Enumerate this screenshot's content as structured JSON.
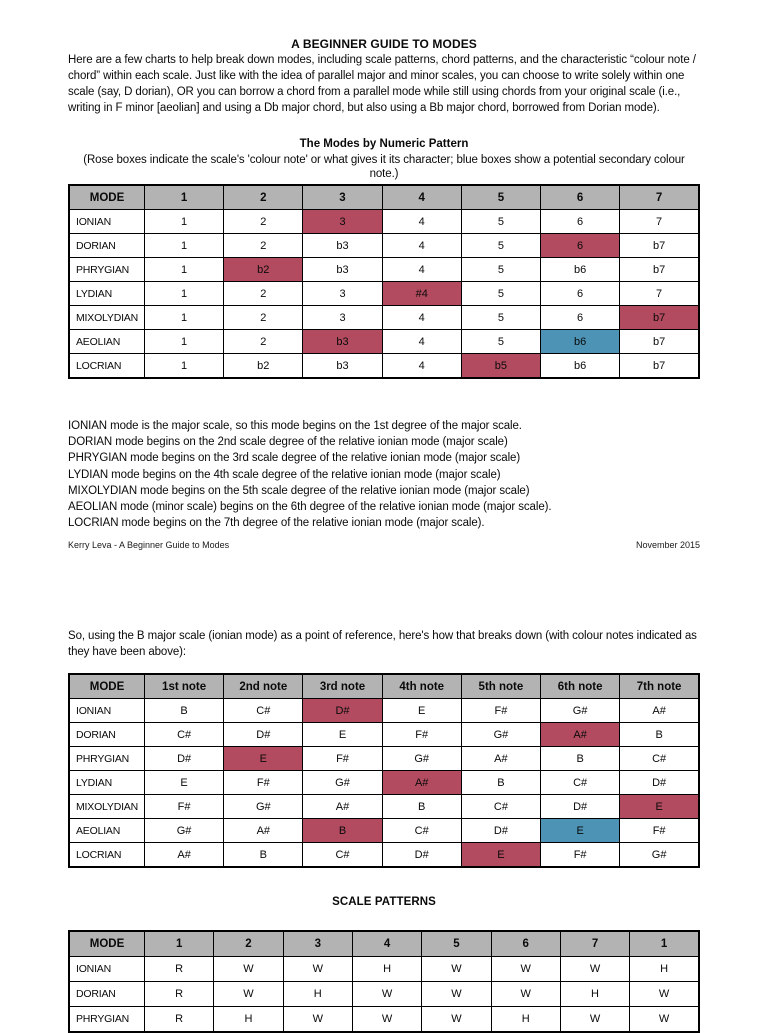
{
  "colors": {
    "rose": "#b34b60",
    "blue": "#4d93b5",
    "header_gray": "#b3b3b3"
  },
  "page1": {
    "title": "A BEGINNER GUIDE TO MODES",
    "intro": "Here are a few charts to help break down modes, including scale patterns, chord patterns, and the characteristic “colour note / chord” within each scale. Just like with the idea of parallel major and minor scales, you can choose to write solely within one scale (say, D dorian), OR you can borrow a chord from a parallel mode while still using chords from your original scale (i.e., writing in F minor [aeolian] and using a Db major chord, but also using a Bb major chord, borrowed from Dorian mode).",
    "section": {
      "title": "The Modes by Numeric Pattern",
      "subtitle": "(Rose boxes indicate the scale's 'colour note' or what gives it its character; blue boxes show a potential secondary colour note.)"
    },
    "table1": {
      "headers": [
        "MODE",
        "1",
        "2",
        "3",
        "4",
        "5",
        "6",
        "7"
      ],
      "rows": [
        {
          "mode": "IONIAN",
          "cells": [
            "1",
            "2",
            "3",
            "4",
            "5",
            "6",
            "7"
          ],
          "hl": {
            "2": "rose"
          }
        },
        {
          "mode": "DORIAN",
          "cells": [
            "1",
            "2",
            "b3",
            "4",
            "5",
            "6",
            "b7"
          ],
          "hl": {
            "5": "rose"
          }
        },
        {
          "mode": "PHRYGIAN",
          "cells": [
            "1",
            "b2",
            "b3",
            "4",
            "5",
            "b6",
            "b7"
          ],
          "hl": {
            "1": "rose"
          }
        },
        {
          "mode": "LYDIAN",
          "cells": [
            "1",
            "2",
            "3",
            "#4",
            "5",
            "6",
            "7"
          ],
          "hl": {
            "3": "rose"
          }
        },
        {
          "mode": "MIXOLYDIAN",
          "cells": [
            "1",
            "2",
            "3",
            "4",
            "5",
            "6",
            "b7"
          ],
          "hl": {
            "6": "rose"
          }
        },
        {
          "mode": "AEOLIAN",
          "cells": [
            "1",
            "2",
            "b3",
            "4",
            "5",
            "b6",
            "b7"
          ],
          "hl": {
            "2": "rose",
            "5": "blue"
          }
        },
        {
          "mode": "LOCRIAN",
          "cells": [
            "1",
            "b2",
            "b3",
            "4",
            "b5",
            "b6",
            "b7"
          ],
          "hl": {
            "4": "rose"
          }
        }
      ]
    },
    "notes": [
      "IONIAN mode is the major scale, so this mode begins on the 1st degree of the major scale.",
      "DORIAN mode begins on the 2nd scale degree of the relative ionian mode (major scale)",
      "PHRYGIAN mode begins on the 3rd scale degree of the relative ionian mode (major scale)",
      "LYDIAN mode begins on the 4th scale degree of the relative ionian mode (major scale)",
      "MIXOLYDIAN mode begins on the 5th scale degree of the relative ionian mode (major scale)",
      "AEOLIAN mode (minor scale) begins on the 6th degree of the relative ionian mode (major scale).",
      "LOCRIAN mode begins on the 7th degree of the relative ionian mode (major scale)."
    ],
    "footer_left": "Kerry Leva - A Beginner Guide to Modes",
    "footer_right": "November 2015"
  },
  "page2": {
    "intro": "So, using the B major scale (ionian mode) as a point of reference, here's how that breaks down (with colour notes indicated as they have been above):",
    "table2": {
      "headers": [
        "MODE",
        "1st note",
        "2nd note",
        "3rd note",
        "4th note",
        "5th note",
        "6th note",
        "7th note"
      ],
      "rows": [
        {
          "mode": "IONIAN",
          "cells": [
            "B",
            "C#",
            "D#",
            "E",
            "F#",
            "G#",
            "A#"
          ],
          "hl": {
            "2": "rose"
          }
        },
        {
          "mode": "DORIAN",
          "cells": [
            "C#",
            "D#",
            "E",
            "F#",
            "G#",
            "A#",
            "B"
          ],
          "hl": {
            "5": "rose"
          }
        },
        {
          "mode": "PHRYGIAN",
          "cells": [
            "D#",
            "E",
            "F#",
            "G#",
            "A#",
            "B",
            "C#"
          ],
          "hl": {
            "1": "rose"
          }
        },
        {
          "mode": "LYDIAN",
          "cells": [
            "E",
            "F#",
            "G#",
            "A#",
            "B",
            "C#",
            "D#"
          ],
          "hl": {
            "3": "rose"
          }
        },
        {
          "mode": "MIXOLYDIAN",
          "cells": [
            "F#",
            "G#",
            "A#",
            "B",
            "C#",
            "D#",
            "E"
          ],
          "hl": {
            "6": "rose"
          }
        },
        {
          "mode": "AEOLIAN",
          "cells": [
            "G#",
            "A#",
            "B",
            "C#",
            "D#",
            "E",
            "F#"
          ],
          "hl": {
            "2": "rose",
            "5": "blue"
          }
        },
        {
          "mode": "LOCRIAN",
          "cells": [
            "A#",
            "B",
            "C#",
            "D#",
            "E",
            "F#",
            "G#"
          ],
          "hl": {
            "4": "rose"
          }
        }
      ]
    },
    "scale_patterns_title": "SCALE PATTERNS",
    "table3": {
      "headers": [
        "MODE",
        "1",
        "2",
        "3",
        "4",
        "5",
        "6",
        "7",
        "1"
      ],
      "rows": [
        {
          "mode": "IONIAN",
          "cells": [
            "R",
            "W",
            "W",
            "H",
            "W",
            "W",
            "W",
            "H"
          ]
        },
        {
          "mode": "DORIAN",
          "cells": [
            "R",
            "W",
            "H",
            "W",
            "W",
            "W",
            "H",
            "W"
          ]
        },
        {
          "mode": "PHRYGIAN",
          "cells": [
            "R",
            "H",
            "W",
            "W",
            "W",
            "H",
            "W",
            "W"
          ]
        }
      ]
    }
  }
}
